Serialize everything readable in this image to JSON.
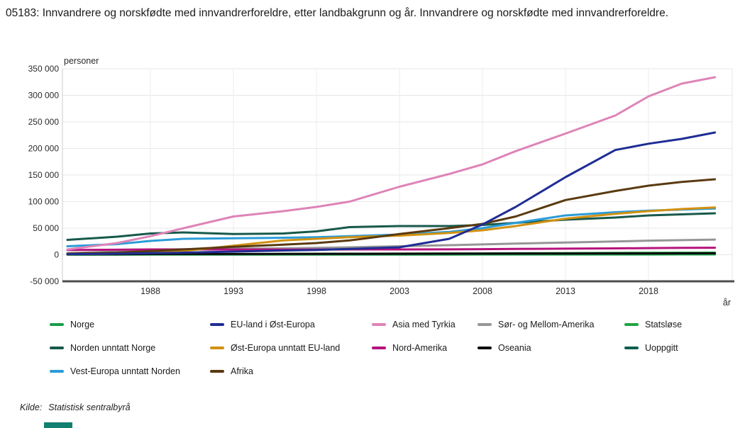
{
  "title": "05183: Innvandrere og norskfødte med innvandrerforeldre, etter landbakgrunn og år. Innvandrere og norskfødte med innvandrerforeldre.",
  "source": {
    "prefix": "Kilde:",
    "text": "Statistisk sentralbyrå"
  },
  "chart_data": {
    "type": "line",
    "title": "05183: Innvandrere og norskfødte med innvandrerforeldre, etter landbakgrunn og år. Innvandrere og norskfødte med innvandrerforeldre.",
    "ylabel": "personer",
    "xlabel": "år",
    "ylim": [
      -50000,
      350000
    ],
    "grid": true,
    "legend_position": "bottom",
    "x": [
      1983,
      1986,
      1988,
      1990,
      1993,
      1996,
      1998,
      2000,
      2003,
      2006,
      2008,
      2010,
      2013,
      2016,
      2018,
      2020,
      2022
    ],
    "x_ticks": [
      {
        "year": 1988,
        "label": "1988"
      },
      {
        "year": 1993,
        "label": "1993"
      },
      {
        "year": 1998,
        "label": "1998"
      },
      {
        "year": 2003,
        "label": "2003"
      },
      {
        "year": 2008,
        "label": "2008"
      },
      {
        "year": 2013,
        "label": "2013"
      },
      {
        "year": 2018,
        "label": "2018"
      }
    ],
    "y_ticks": [
      {
        "value": 350000,
        "label": "350 000"
      },
      {
        "value": 300000,
        "label": "300 000"
      },
      {
        "value": 250000,
        "label": "250 000"
      },
      {
        "value": 200000,
        "label": "200 000"
      },
      {
        "value": 150000,
        "label": "150 000"
      },
      {
        "value": 100000,
        "label": "100 000"
      },
      {
        "value": 50000,
        "label": "50 000"
      },
      {
        "value": 0,
        "label": "0"
      },
      {
        "value": -50000,
        "label": "-50 000"
      }
    ],
    "series": [
      {
        "name": "Norge",
        "color": "#1a9d49",
        "values": [
          200,
          250,
          300,
          300,
          350,
          350,
          400,
          400,
          450,
          450,
          500,
          500,
          550,
          600,
          600,
          650,
          700
        ]
      },
      {
        "name": "Norden unntatt Norge",
        "color": "#17594b",
        "values": [
          28000,
          34000,
          40000,
          42000,
          39000,
          40000,
          44000,
          52000,
          54000,
          54000,
          56000,
          60000,
          66000,
          70000,
          74000,
          76000,
          78000
        ]
      },
      {
        "name": "Vest-Europa unntatt Norden",
        "color": "#2b9cd8",
        "values": [
          16000,
          20000,
          26000,
          30000,
          31000,
          32000,
          33000,
          35000,
          38000,
          43000,
          50000,
          60000,
          74000,
          80000,
          83000,
          85000,
          87000
        ]
      },
      {
        "name": "EU-land i Øst-Europa",
        "color": "#1f2d94",
        "values": [
          1000,
          2000,
          3000,
          4000,
          6000,
          8000,
          9000,
          11000,
          14000,
          30000,
          57000,
          90000,
          146000,
          197000,
          209000,
          218000,
          230000
        ]
      },
      {
        "name": "Øst-Europa unntatt EU-land",
        "color": "#d29111",
        "values": [
          1000,
          2000,
          4000,
          7000,
          17000,
          27000,
          30000,
          33000,
          36000,
          41000,
          46000,
          54000,
          68000,
          77000,
          82000,
          86000,
          89000
        ]
      },
      {
        "name": "Afrika",
        "color": "#5a3a10",
        "values": [
          2000,
          4000,
          7000,
          10000,
          15000,
          19000,
          22000,
          27000,
          39000,
          50000,
          58000,
          72000,
          103000,
          120000,
          130000,
          137000,
          142000
        ]
      },
      {
        "name": "Asia med Tyrkia",
        "color": "#de84b8",
        "values": [
          10000,
          22000,
          35000,
          50000,
          72000,
          82000,
          90000,
          100000,
          128000,
          152000,
          170000,
          195000,
          228000,
          262000,
          298000,
          322000,
          334000
        ]
      },
      {
        "name": "Nord-Amerika",
        "color": "#b5137c",
        "values": [
          9000,
          9500,
          10000,
          10000,
          9800,
          9700,
          9800,
          10000,
          10000,
          10200,
          10500,
          11000,
          11500,
          12000,
          12500,
          13000,
          13200
        ]
      },
      {
        "name": "Sør- og Mellom-Amerika",
        "color": "#969696",
        "values": [
          3000,
          6000,
          9000,
          10500,
          11500,
          12000,
          13000,
          14000,
          16000,
          18000,
          19500,
          21000,
          23000,
          25000,
          26500,
          27500,
          28500
        ]
      },
      {
        "name": "Oseania",
        "color": "#0d0d0d",
        "values": [
          1000,
          1100,
          1300,
          1400,
          1500,
          1600,
          1700,
          1800,
          2000,
          2100,
          2200,
          2300,
          2400,
          2500,
          2600,
          2700,
          2800
        ]
      },
      {
        "name": "Statsløse",
        "color": "#21a445",
        "values": [
          300,
          500,
          700,
          900,
          1200,
          1600,
          1800,
          2000,
          2200,
          2400,
          2600,
          2800,
          3200,
          3500,
          3700,
          3800,
          3900
        ]
      },
      {
        "name": "Uoppgitt",
        "color": "#0e5e50",
        "values": [
          500,
          600,
          800,
          1000,
          1200,
          1300,
          1400,
          1500,
          1600,
          1800,
          2000,
          2200,
          2500,
          2800,
          3000,
          3200,
          3400
        ]
      }
    ],
    "legend_rows": [
      [
        "Norge",
        "EU-land i Øst-Europa",
        "Asia med Tyrkia",
        "Sør- og Mellom-Amerika",
        "Statsløse"
      ],
      [
        "Norden unntatt Norge",
        "Øst-Europa unntatt EU-land",
        "Nord-Amerika",
        "Oseania",
        "Uoppgitt"
      ],
      [
        "Vest-Europa unntatt Norden",
        "Afrika"
      ]
    ],
    "draw_order": [
      "Norge",
      "Uoppgitt",
      "Statsløse",
      "Oseania",
      "Sør- og Mellom-Amerika",
      "Nord-Amerika",
      "Norden unntatt Norge",
      "Vest-Europa unntatt Norden",
      "Øst-Europa unntatt EU-land",
      "Afrika",
      "EU-land i Øst-Europa",
      "Asia med Tyrkia"
    ]
  }
}
